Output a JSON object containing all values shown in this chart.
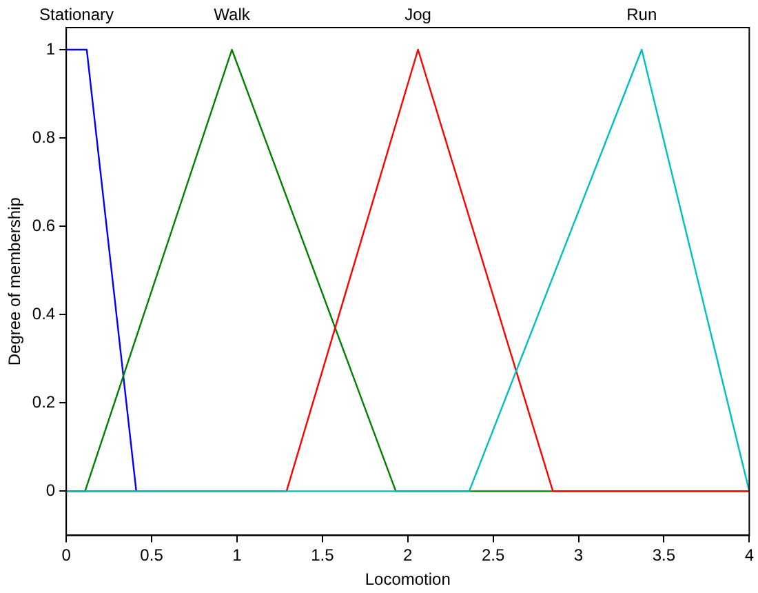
{
  "chart_data": {
    "type": "line",
    "xlabel": "Locomotion",
    "ylabel": "Degree of membership",
    "xlim": [
      0,
      4
    ],
    "xticks": [
      0,
      0.5,
      1,
      1.5,
      2,
      2.5,
      3,
      3.5,
      4
    ],
    "ylim": [
      -0.1,
      1.05
    ],
    "yticks": [
      0,
      0.2,
      0.4,
      0.6,
      0.8,
      1
    ],
    "grid": false,
    "legend": false,
    "marker": "none",
    "line_style": "solid",
    "series": [
      {
        "name": "Stationary",
        "color": "#0000ff",
        "x": [
          0,
          0.12,
          0.41
        ],
        "values": [
          1,
          1,
          0
        ]
      },
      {
        "name": "Walk",
        "color": "#008000",
        "x": [
          0,
          0.11,
          0.97,
          1.93,
          4
        ],
        "values": [
          0,
          0,
          1,
          0,
          0
        ]
      },
      {
        "name": "Jog",
        "color": "#ff0000",
        "x": [
          0,
          1.29,
          2.06,
          2.85,
          4
        ],
        "values": [
          0,
          0,
          1,
          0,
          0
        ]
      },
      {
        "name": "Run",
        "color": "#00bfbf",
        "x": [
          0,
          2.36,
          3.37,
          4
        ],
        "values": [
          0,
          0,
          1,
          0
        ]
      }
    ]
  }
}
